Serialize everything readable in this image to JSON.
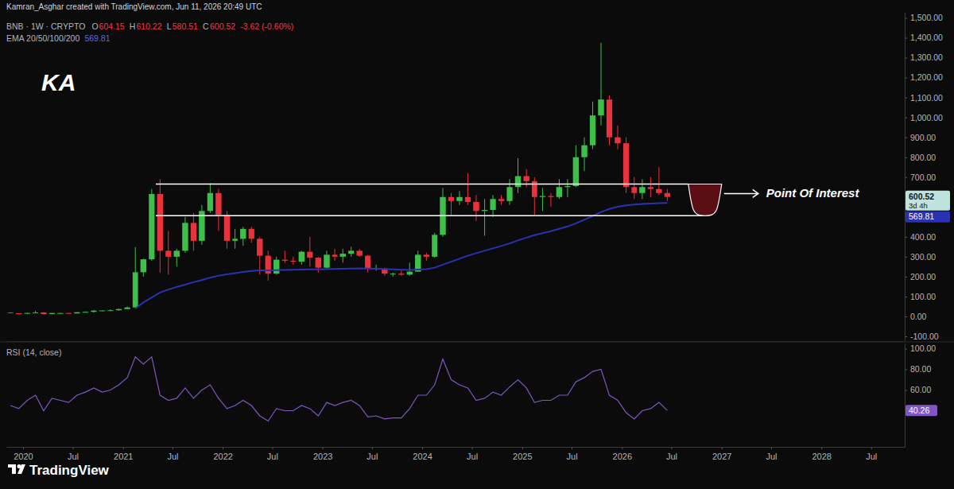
{
  "chart_data": [
    {
      "type": "candlestick",
      "title": "BNB · 1W · CRYPTO",
      "ohlc_legend": [
        "O",
        "604.15",
        "H",
        "610.22",
        "L",
        "580.51",
        "C",
        "600.52",
        "-3.62 (-0.60%)"
      ],
      "x": [
        "2019-11",
        "2019-12",
        "2020-01",
        "2020-02",
        "2020-03",
        "2020-04",
        "2020-05",
        "2020-06",
        "2020-07",
        "2020-08",
        "2020-09",
        "2020-10",
        "2020-11",
        "2020-12",
        "2021-01",
        "2021-02",
        "2021-03",
        "2021-04",
        "2021-05",
        "2021-06",
        "2021-07",
        "2021-08",
        "2021-09",
        "2021-10",
        "2021-11",
        "2021-12",
        "2022-01",
        "2022-02",
        "2022-03",
        "2022-04",
        "2022-05",
        "2022-06",
        "2022-07",
        "2022-08",
        "2022-09",
        "2022-10",
        "2022-11",
        "2022-12",
        "2023-01",
        "2023-02",
        "2023-03",
        "2023-04",
        "2023-05",
        "2023-06",
        "2023-07",
        "2023-08",
        "2023-09",
        "2023-10",
        "2023-11",
        "2023-12",
        "2024-01",
        "2024-02",
        "2024-03",
        "2024-04",
        "2024-05",
        "2024-06",
        "2024-07",
        "2024-08",
        "2024-09",
        "2024-10",
        "2024-11",
        "2024-12",
        "2025-01",
        "2025-02",
        "2025-03",
        "2025-04",
        "2025-05",
        "2025-06",
        "2025-07",
        "2025-08",
        "2025-09",
        "2025-10",
        "2025-11",
        "2025-12",
        "2026-01",
        "2026-02",
        "2026-03",
        "2026-04",
        "2026-05",
        "2026-06"
      ],
      "open": [
        20,
        16,
        14,
        17,
        20,
        12,
        17,
        17,
        15,
        21,
        23,
        29,
        30,
        31,
        37,
        45,
        222,
        287,
        615,
        330,
        300,
        330,
        470,
        380,
        530,
        620,
        510,
        380,
        390,
        440,
        390,
        305,
        215,
        285,
        280,
        275,
        325,
        295,
        245,
        310,
        300,
        315,
        330,
        305,
        240,
        240,
        215,
        215,
        210,
        225,
        310,
        300,
        410,
        600,
        580,
        600,
        575,
        530,
        535,
        590,
        580,
        650,
        705,
        680,
        600,
        605,
        600,
        650,
        655,
        800,
        860,
        1010,
        1090,
        900,
        870,
        650,
        620,
        650,
        640,
        620
      ],
      "high": [
        21,
        16,
        19,
        28,
        22,
        18,
        18,
        18,
        21,
        25,
        33,
        31,
        36,
        40,
        50,
        348,
        290,
        640,
        690,
        430,
        340,
        500,
        520,
        560,
        670,
        640,
        530,
        440,
        450,
        450,
        400,
        330,
        300,
        330,
        300,
        330,
        400,
        300,
        330,
        340,
        340,
        350,
        340,
        310,
        260,
        245,
        220,
        230,
        270,
        330,
        320,
        420,
        645,
        620,
        630,
        720,
        610,
        590,
        610,
        610,
        690,
        795,
        740,
        700,
        645,
        620,
        690,
        690,
        860,
        900,
        1080,
        1375,
        1110,
        960,
        900,
        700,
        690,
        700,
        750,
        640
      ],
      "low": [
        15,
        13,
        13,
        17,
        9,
        11,
        15,
        15,
        15,
        20,
        20,
        27,
        27,
        29,
        36,
        45,
        200,
        280,
        220,
        210,
        250,
        320,
        330,
        360,
        520,
        430,
        340,
        340,
        355,
        370,
        210,
        180,
        210,
        270,
        260,
        260,
        250,
        220,
        240,
        280,
        270,
        300,
        300,
        220,
        230,
        205,
        200,
        205,
        205,
        225,
        280,
        295,
        400,
        510,
        560,
        560,
        480,
        405,
        500,
        560,
        560,
        620,
        650,
        510,
        530,
        550,
        590,
        600,
        650,
        730,
        840,
        960,
        860,
        840,
        620,
        590,
        590,
        600,
        610,
        580
      ],
      "close": [
        16,
        14,
        17,
        20,
        12,
        17,
        17,
        15,
        21,
        23,
        29,
        30,
        31,
        37,
        45,
        222,
        287,
        615,
        330,
        300,
        330,
        470,
        380,
        530,
        620,
        510,
        380,
        390,
        440,
        390,
        305,
        215,
        285,
        280,
        275,
        325,
        295,
        245,
        310,
        300,
        315,
        330,
        305,
        240,
        240,
        215,
        215,
        210,
        225,
        310,
        300,
        410,
        600,
        580,
        600,
        575,
        530,
        535,
        590,
        580,
        650,
        705,
        680,
        600,
        605,
        600,
        650,
        655,
        800,
        860,
        1010,
        1090,
        900,
        870,
        650,
        620,
        650,
        640,
        620,
        600.52
      ],
      "series": [
        {
          "name": "EMA 20/50/100/200",
          "type": "line",
          "color": "#2b32b2",
          "values": [
            null,
            null,
            null,
            null,
            null,
            null,
            null,
            null,
            null,
            null,
            null,
            null,
            null,
            null,
            null,
            40,
            70,
            95,
            120,
            135,
            148,
            160,
            172,
            183,
            195,
            205,
            212,
            218,
            224,
            229,
            232,
            232,
            233,
            234,
            235,
            236,
            237,
            237,
            238,
            239,
            240,
            241,
            242,
            241,
            240,
            239,
            237,
            235,
            234,
            236,
            238,
            245,
            260,
            275,
            290,
            305,
            318,
            330,
            342,
            354,
            367,
            382,
            396,
            408,
            418,
            428,
            440,
            452,
            468,
            486,
            505,
            525,
            540,
            551,
            558,
            562,
            565,
            567,
            569,
            569.81
          ]
        }
      ],
      "xlim": [
        "2019-11",
        "2028-11"
      ],
      "ylim": [
        -120,
        1530
      ],
      "yticks": [
        {
          "value": -100,
          "label": "-100.00"
        },
        {
          "value": 0,
          "label": "0.00"
        },
        {
          "value": 100,
          "label": "100.00"
        },
        {
          "value": 200,
          "label": "200.00"
        },
        {
          "value": 300,
          "label": "300.00"
        },
        {
          "value": 400,
          "label": "400.00"
        },
        {
          "value": 700,
          "label": "700.00"
        },
        {
          "value": 800,
          "label": "800.00"
        },
        {
          "value": 900,
          "label": "900.00"
        },
        {
          "value": 1000,
          "label": "1,000.00"
        },
        {
          "value": 1100,
          "label": "1,100.00"
        },
        {
          "value": 1200,
          "label": "1,200.00"
        },
        {
          "value": 1300,
          "label": "1,300.00"
        },
        {
          "value": 1400,
          "label": "1,400.00"
        },
        {
          "value": 1500,
          "label": "1,500.00"
        }
      ],
      "tick_labels": "y",
      "grid": false,
      "price_label": {
        "value": 600.52,
        "label": "600.52",
        "countdown": "3d 4h"
      },
      "ema_label": {
        "value": 569.81,
        "label": "569.81"
      },
      "levels": [
        {
          "value": 665,
          "x": [
            "2021-05",
            "2026-09"
          ]
        },
        {
          "value": 506,
          "x": [
            "2021-05",
            "2026-11"
          ]
        }
      ],
      "zone": {
        "x": [
          "2026-09",
          "2027-01"
        ],
        "top": 665,
        "bottom": 506,
        "label": "Point Of Interest"
      },
      "annotations": {
        "credit": "Kamran_Asghar created with TradingView.com, Jun 11, 2026 20:49 UTC",
        "logo": "KA",
        "footer": "TradingView"
      }
    },
    {
      "type": "line",
      "title": "RSI (14, close)",
      "color": "#7e57c2",
      "x": [
        "2019-11",
        "2019-12",
        "2020-01",
        "2020-02",
        "2020-03",
        "2020-04",
        "2020-05",
        "2020-06",
        "2020-07",
        "2020-08",
        "2020-09",
        "2020-10",
        "2020-11",
        "2020-12",
        "2021-01",
        "2021-02",
        "2021-03",
        "2021-04",
        "2021-05",
        "2021-06",
        "2021-07",
        "2021-08",
        "2021-09",
        "2021-10",
        "2021-11",
        "2021-12",
        "2022-01",
        "2022-02",
        "2022-03",
        "2022-04",
        "2022-05",
        "2022-06",
        "2022-07",
        "2022-08",
        "2022-09",
        "2022-10",
        "2022-11",
        "2022-12",
        "2023-01",
        "2023-02",
        "2023-03",
        "2023-04",
        "2023-05",
        "2023-06",
        "2023-07",
        "2023-08",
        "2023-09",
        "2023-10",
        "2023-11",
        "2023-12",
        "2024-01",
        "2024-02",
        "2024-03",
        "2024-04",
        "2024-05",
        "2024-06",
        "2024-07",
        "2024-08",
        "2024-09",
        "2024-10",
        "2024-11",
        "2024-12",
        "2025-01",
        "2025-02",
        "2025-03",
        "2025-04",
        "2025-05",
        "2025-06",
        "2025-07",
        "2025-08",
        "2025-09",
        "2025-10",
        "2025-11",
        "2025-12",
        "2026-01",
        "2026-02",
        "2026-03",
        "2026-04",
        "2026-05",
        "2026-06"
      ],
      "values": [
        45,
        42,
        50,
        55,
        40,
        52,
        50,
        48,
        55,
        58,
        62,
        58,
        60,
        65,
        72,
        92,
        85,
        92,
        55,
        50,
        52,
        62,
        52,
        60,
        65,
        52,
        42,
        45,
        50,
        45,
        35,
        30,
        42,
        40,
        40,
        45,
        42,
        35,
        48,
        45,
        48,
        50,
        45,
        34,
        35,
        32,
        33,
        33,
        42,
        55,
        55,
        65,
        90,
        70,
        65,
        62,
        50,
        52,
        58,
        55,
        63,
        70,
        62,
        48,
        50,
        50,
        55,
        55,
        68,
        72,
        78,
        80,
        55,
        50,
        38,
        32,
        40,
        42,
        48,
        40.26
      ],
      "xlim": [
        "2019-11",
        "2028-11"
      ],
      "ylim": [
        5,
        105
      ],
      "yticks": [
        {
          "value": 60,
          "label": "60.00"
        },
        {
          "value": 80,
          "label": "80.00"
        },
        {
          "value": 100,
          "label": "100.00"
        }
      ],
      "xticks": [
        {
          "value": "2020-01",
          "label": "2020"
        },
        {
          "value": "2020-07",
          "label": "Jul"
        },
        {
          "value": "2021-01",
          "label": "2021"
        },
        {
          "value": "2021-07",
          "label": "Jul"
        },
        {
          "value": "2022-01",
          "label": "2022"
        },
        {
          "value": "2022-07",
          "label": "Jul"
        },
        {
          "value": "2023-01",
          "label": "2023"
        },
        {
          "value": "2023-07",
          "label": "Jul"
        },
        {
          "value": "2024-01",
          "label": "2024"
        },
        {
          "value": "2024-07",
          "label": "Jul"
        },
        {
          "value": "2025-01",
          "label": "2025"
        },
        {
          "value": "2025-07",
          "label": "Jul"
        },
        {
          "value": "2026-01",
          "label": "2026"
        },
        {
          "value": "2026-07",
          "label": "Jul"
        },
        {
          "value": "2027-01",
          "label": "2027"
        },
        {
          "value": "2027-07",
          "label": "Jul"
        },
        {
          "value": "2028-01",
          "label": "2028"
        },
        {
          "value": "2028-07",
          "label": "Jul"
        }
      ],
      "grid": false,
      "last_label": {
        "value": 40.26,
        "label": "40.26"
      }
    }
  ]
}
